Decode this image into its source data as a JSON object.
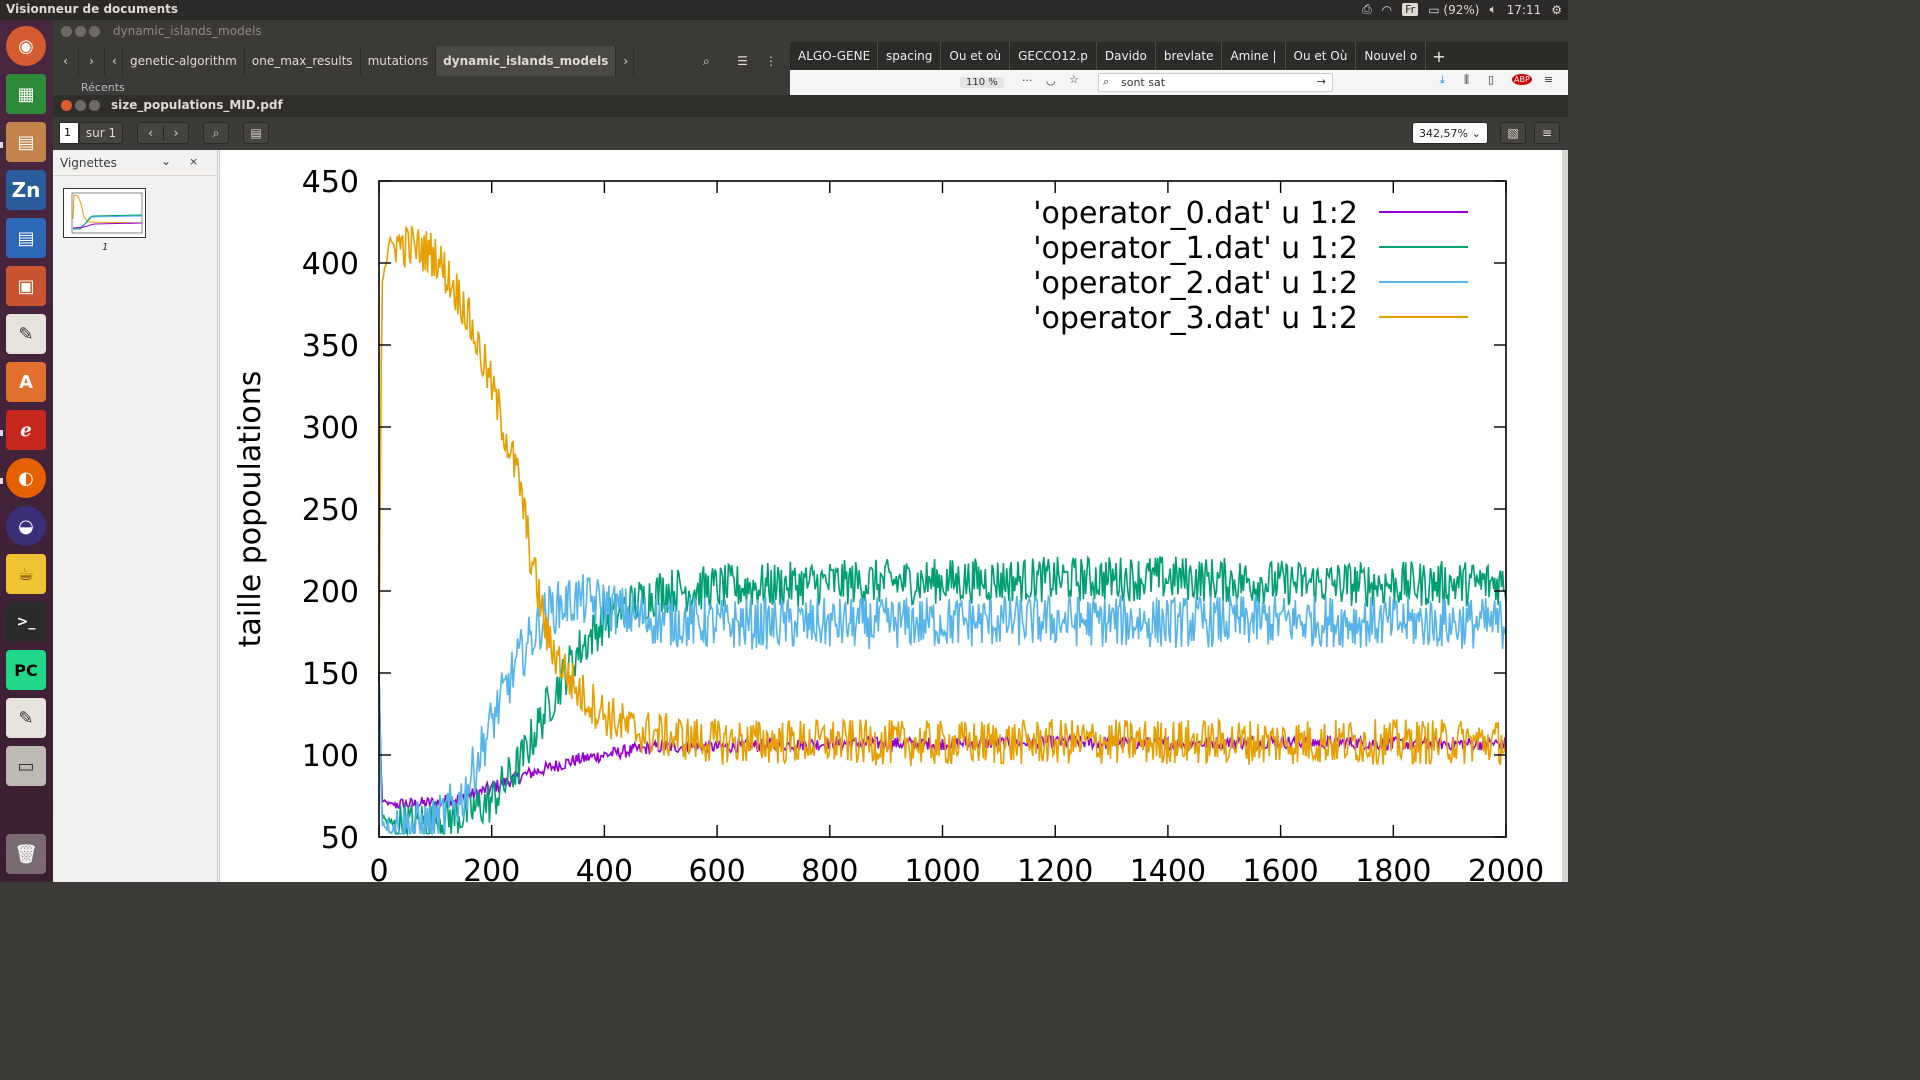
{
  "topbar": {
    "app_title": "Visionneur de documents",
    "keyboard": "Fr",
    "battery": "(92%)",
    "time": "17:11"
  },
  "nautilus": {
    "title": "dynamic_islands_models",
    "breadcrumbs": [
      "genetic-algorithm",
      "one_max_results",
      "mutations",
      "dynamic_islands_models"
    ],
    "recent_label": "Récents"
  },
  "firefox": {
    "tabs": [
      "ALGO-GENE",
      "spacing",
      "Ou et où",
      "GECCO12.p",
      "Davido",
      "brevlate",
      "Amine |",
      "Ou et Où",
      "Nouvel o"
    ],
    "zoom": "110 %",
    "search_text": "sont sat"
  },
  "evince": {
    "title": "size_populations_MID.pdf",
    "page_number": "1",
    "page_of": "sur 1",
    "zoom": "342,57%",
    "sidebar_label": "Vignettes",
    "thumb_page": "1"
  },
  "chart_data": {
    "type": "line",
    "title": "",
    "xlabel": "",
    "ylabel": "taille popoulations",
    "xlim": [
      0,
      2000
    ],
    "ylim": [
      50,
      450
    ],
    "xticks": [
      0,
      200,
      400,
      600,
      800,
      1000,
      1200,
      1400,
      1600,
      1800,
      2000
    ],
    "yticks": [
      50,
      100,
      150,
      200,
      250,
      300,
      350,
      400,
      450
    ],
    "legend_position": "top-right",
    "series": [
      {
        "name": "'operator_0.dat' u 1:2",
        "color": "#9400d3",
        "x": [
          0,
          5,
          20,
          60,
          100,
          150,
          200,
          250,
          300,
          350,
          400,
          450,
          500,
          600,
          800,
          1000,
          1200,
          1400,
          1600,
          1800,
          2000
        ],
        "y": [
          150,
          72,
          70,
          70,
          71,
          74,
          80,
          87,
          92,
          97,
          100,
          103,
          105,
          105,
          107,
          107,
          108,
          107,
          108,
          107,
          107
        ],
        "noise": 4
      },
      {
        "name": "'operator_1.dat' u 1:2",
        "color": "#009e73",
        "x": [
          0,
          5,
          20,
          60,
          100,
          150,
          200,
          250,
          300,
          350,
          400,
          450,
          500,
          600,
          800,
          1000,
          1200,
          1400,
          1600,
          1800,
          2000
        ],
        "y": [
          150,
          62,
          58,
          58,
          60,
          64,
          72,
          95,
          130,
          162,
          182,
          192,
          200,
          202,
          205,
          206,
          207,
          208,
          205,
          204,
          205
        ],
        "noise": 14
      },
      {
        "name": "'operator_2.dat' u 1:2",
        "color": "#56b4e9",
        "x": [
          0,
          5,
          20,
          60,
          100,
          150,
          200,
          250,
          300,
          350,
          400,
          450,
          500,
          600,
          800,
          1000,
          1200,
          1400,
          1600,
          1800,
          2000
        ],
        "y": [
          150,
          60,
          56,
          56,
          58,
          75,
          120,
          160,
          188,
          195,
          192,
          185,
          182,
          180,
          180,
          181,
          182,
          181,
          182,
          181,
          180
        ],
        "noise": 16
      },
      {
        "name": "'operator_3.dat' u 1:2",
        "color": "#e69f00",
        "x": [
          0,
          5,
          20,
          60,
          100,
          150,
          200,
          250,
          270,
          300,
          350,
          400,
          450,
          500,
          600,
          800,
          1000,
          1200,
          1400,
          1600,
          1800,
          2000
        ],
        "y": [
          150,
          390,
          412,
          410,
          405,
          375,
          325,
          265,
          220,
          170,
          140,
          125,
          115,
          112,
          108,
          108,
          107,
          108,
          108,
          108,
          108,
          108
        ],
        "noise": 14
      }
    ]
  }
}
